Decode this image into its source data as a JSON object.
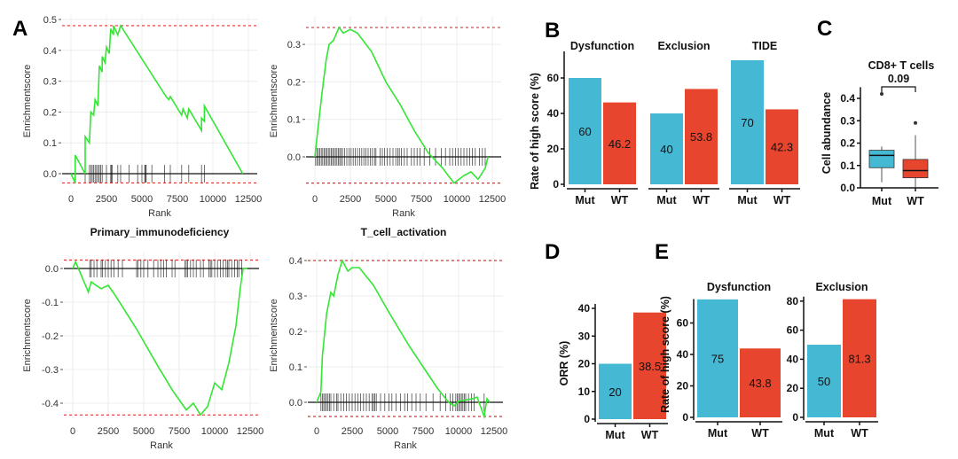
{
  "panel_letters": [
    "A",
    "B",
    "C",
    "D",
    "E"
  ],
  "colors": {
    "mut": "#45b8d4",
    "wt": "#e8452f",
    "curve": "#33e633",
    "ref": "#e03030",
    "hit": "#222222"
  },
  "chart_data": [
    {
      "type": "line",
      "panel": "A",
      "title": "Primary_immunodeficiency",
      "xlabel": "Rank",
      "ylabel": "Enrichmentscore",
      "xticks": [
        "0",
        "2500",
        "5000",
        "7500",
        "10000",
        "12500"
      ],
      "yticks": [
        "0.0",
        "0.1",
        "0.2",
        "0.3",
        "0.4",
        "0.5"
      ],
      "xlim": [
        0,
        12500
      ],
      "ylim": [
        -0.03,
        0.5
      ],
      "ref_lines": [
        0.48,
        -0.03
      ],
      "points": [
        [
          0,
          0
        ],
        [
          300,
          -0.03
        ],
        [
          300,
          0.06
        ],
        [
          1000,
          0
        ],
        [
          1000,
          0.12
        ],
        [
          1300,
          0.1
        ],
        [
          1400,
          0.2
        ],
        [
          1600,
          0.19
        ],
        [
          1700,
          0.24
        ],
        [
          1900,
          0.22
        ],
        [
          2000,
          0.35
        ],
        [
          2200,
          0.33
        ],
        [
          2200,
          0.38
        ],
        [
          2400,
          0.36
        ],
        [
          2500,
          0.41
        ],
        [
          2700,
          0.39
        ],
        [
          2800,
          0.47
        ],
        [
          3000,
          0.45
        ],
        [
          3000,
          0.48
        ],
        [
          3300,
          0.45
        ],
        [
          3500,
          0.48
        ],
        [
          6700,
          0.25
        ],
        [
          6900,
          0.24
        ],
        [
          7000,
          0.25
        ],
        [
          7800,
          0.19
        ],
        [
          7900,
          0.21
        ],
        [
          8200,
          0.18
        ],
        [
          8300,
          0.21
        ],
        [
          9200,
          0.14
        ],
        [
          9200,
          0.18
        ],
        [
          9400,
          0.17
        ],
        [
          9400,
          0.22
        ],
        [
          12100,
          0
        ]
      ],
      "hits": [
        300,
        1000,
        1300,
        1400,
        1500,
        1600,
        1700,
        1800,
        1900,
        2000,
        2100,
        2200,
        2500,
        2800,
        2850,
        2900,
        3300,
        3500,
        4100,
        4700,
        5000,
        5200,
        5250,
        5300,
        5700,
        6600,
        7000,
        7800,
        8300,
        9200,
        9400
      ]
    },
    {
      "type": "line",
      "panel": "A",
      "title": "T_cell_activation",
      "xlabel": "Rank",
      "ylabel": "Enrichmentscore",
      "xticks": [
        "0",
        "2500",
        "5000",
        "7500",
        "10000",
        "12500"
      ],
      "yticks": [
        "0.0",
        "0.1",
        "0.2",
        "0.3"
      ],
      "xlim": [
        0,
        12500
      ],
      "ylim": [
        -0.07,
        0.345
      ],
      "ref_lines": [
        0.345,
        -0.07
      ],
      "points": [
        [
          0,
          0
        ],
        [
          200,
          0.07
        ],
        [
          500,
          0.17
        ],
        [
          800,
          0.26
        ],
        [
          1000,
          0.3
        ],
        [
          1300,
          0.31
        ],
        [
          1700,
          0.345
        ],
        [
          2000,
          0.33
        ],
        [
          2500,
          0.34
        ],
        [
          3000,
          0.33
        ],
        [
          4000,
          0.28
        ],
        [
          5000,
          0.2
        ],
        [
          6000,
          0.14
        ],
        [
          7000,
          0.07
        ],
        [
          8000,
          0.01
        ],
        [
          9000,
          -0.03
        ],
        [
          9800,
          -0.07
        ],
        [
          10500,
          -0.05
        ],
        [
          11000,
          -0.04
        ],
        [
          11500,
          -0.06
        ],
        [
          12000,
          -0.03
        ],
        [
          12200,
          0
        ]
      ],
      "hits": [
        50,
        150,
        250,
        350,
        450,
        550,
        650,
        750,
        850,
        950,
        1050,
        1150,
        1250,
        1350,
        1450,
        1550,
        1650,
        1750,
        1850,
        1950,
        2100,
        2250,
        2400,
        2550,
        2700,
        2850,
        3000,
        3150,
        3300,
        3450,
        3600,
        3750,
        3900,
        4050,
        4200,
        4300,
        4600,
        4750,
        4900,
        5100,
        5300,
        5500,
        5700,
        5850,
        5950,
        6100,
        6300,
        6500,
        6800,
        7000,
        7200,
        7400,
        7700,
        8100,
        8500,
        8900,
        9200,
        9500,
        9700,
        9900,
        10100,
        10300,
        10500,
        10700,
        10900,
        11100,
        11300,
        11600,
        11800,
        12000
      ]
    },
    {
      "type": "line",
      "panel": "A",
      "title": "",
      "xlabel": "Rank",
      "ylabel": "Enrichmentscore",
      "xticks": [
        "0",
        "2500",
        "5000",
        "7500",
        "10000",
        "12500"
      ],
      "yticks": [
        "-0.4",
        "-0.3",
        "-0.2",
        "-0.1",
        "0.0"
      ],
      "xlim": [
        0,
        12500
      ],
      "ylim": [
        -0.435,
        0.025
      ],
      "ref_lines": [
        0.025,
        -0.435
      ],
      "points": [
        [
          0,
          0
        ],
        [
          200,
          0.02
        ],
        [
          1100,
          -0.07
        ],
        [
          1300,
          -0.04
        ],
        [
          2000,
          -0.06
        ],
        [
          2500,
          -0.05
        ],
        [
          3000,
          -0.08
        ],
        [
          4500,
          -0.18
        ],
        [
          6000,
          -0.29
        ],
        [
          7000,
          -0.36
        ],
        [
          8000,
          -0.42
        ],
        [
          8500,
          -0.4
        ],
        [
          9000,
          -0.435
        ],
        [
          9500,
          -0.41
        ],
        [
          10000,
          -0.34
        ],
        [
          10500,
          -0.36
        ],
        [
          11000,
          -0.28
        ],
        [
          11500,
          -0.17
        ],
        [
          11800,
          -0.06
        ],
        [
          12000,
          0
        ],
        [
          12300,
          0
        ]
      ],
      "hits": [
        1200,
        1300,
        1500,
        1700,
        2000,
        2100,
        2300,
        2500,
        2700,
        2900,
        3200,
        3500,
        4500,
        4600,
        4800,
        5000,
        5300,
        5700,
        6000,
        6200,
        6400,
        6600,
        7000,
        7200,
        7900,
        8000,
        8100,
        8300,
        8500,
        8700,
        9000,
        9200,
        9600,
        9700,
        9800,
        10000,
        10200,
        10400,
        10600,
        10800,
        10900,
        11000,
        11200,
        11400,
        11600,
        11700,
        11900
      ]
    },
    {
      "type": "line",
      "panel": "A",
      "title": "",
      "xlabel": "Rank",
      "ylabel": "Enrichmentscore",
      "xticks": [
        "0",
        "2500",
        "5000",
        "7500",
        "10000",
        "12500"
      ],
      "yticks": [
        "0.0",
        "0.1",
        "0.2",
        "0.3",
        "0.4"
      ],
      "xlim": [
        0,
        12500
      ],
      "ylim": [
        -0.04,
        0.4
      ],
      "ref_lines": [
        0.4,
        -0.04
      ],
      "points": [
        [
          0,
          0
        ],
        [
          300,
          0.03
        ],
        [
          400,
          0.13
        ],
        [
          700,
          0.25
        ],
        [
          1000,
          0.31
        ],
        [
          1200,
          0.3
        ],
        [
          1500,
          0.36
        ],
        [
          1800,
          0.4
        ],
        [
          2200,
          0.37
        ],
        [
          2500,
          0.38
        ],
        [
          3000,
          0.38
        ],
        [
          4000,
          0.33
        ],
        [
          5000,
          0.26
        ],
        [
          6500,
          0.16
        ],
        [
          7500,
          0.1
        ],
        [
          8500,
          0.04
        ],
        [
          9300,
          0
        ],
        [
          9700,
          -0.01
        ],
        [
          10000,
          0.003
        ],
        [
          11000,
          0.01
        ],
        [
          11300,
          0.015
        ],
        [
          11800,
          -0.04
        ],
        [
          12000,
          0.01
        ],
        [
          12200,
          0
        ]
      ],
      "hits": [
        300,
        400,
        500,
        600,
        700,
        800,
        900,
        1000,
        1200,
        1400,
        1500,
        1700,
        1900,
        2100,
        2300,
        2500,
        2700,
        2900,
        3100,
        3300,
        3500,
        3700,
        3900,
        4000,
        4100,
        4200,
        4500,
        4800,
        5100,
        5300,
        5600,
        5900,
        6200,
        6400,
        6700,
        7000,
        7300,
        7700,
        8200,
        8700,
        9100,
        9400,
        9600,
        9800,
        9900,
        10000,
        10100,
        10200,
        10300,
        10400,
        10500,
        10700,
        10900,
        11100,
        11800
      ]
    },
    {
      "type": "bar",
      "panel": "B",
      "ylabel": "Rate of high score (%)",
      "yticks": [
        "0",
        "20",
        "40",
        "60"
      ],
      "ylim": [
        0,
        75
      ],
      "categories": [
        "Mut",
        "WT"
      ],
      "groups": [
        {
          "title": "Dysfunction",
          "values": [
            60,
            46.2
          ],
          "labels": [
            "60",
            "46.2"
          ]
        },
        {
          "title": "Exclusion",
          "values": [
            40,
            53.8
          ],
          "labels": [
            "40",
            "53.8"
          ]
        },
        {
          "title": "TIDE",
          "values": [
            70,
            42.3
          ],
          "labels": [
            "70",
            "42.3"
          ]
        }
      ]
    },
    {
      "type": "box",
      "panel": "C",
      "title": "CD8+ T cells",
      "pvalue": "0.09",
      "ylabel": "Cell abundance",
      "yticks": [
        "0.0",
        "0.1",
        "0.2",
        "0.3",
        "0.4"
      ],
      "ylim": [
        0,
        0.45
      ],
      "categories": [
        "Mut",
        "WT"
      ],
      "boxes": [
        {
          "min": 0.025,
          "q1": 0.09,
          "median": 0.145,
          "q3": 0.168,
          "max": 0.185,
          "outliers": [
            0.42
          ]
        },
        {
          "min": 0.003,
          "q1": 0.045,
          "median": 0.077,
          "q3": 0.127,
          "max": 0.235,
          "outliers": [
            0.29
          ]
        }
      ]
    },
    {
      "type": "bar",
      "panel": "D",
      "ylabel": "ORR (%)",
      "yticks": [
        "0",
        "10",
        "20",
        "30",
        "40"
      ],
      "ylim": [
        0,
        40
      ],
      "categories": [
        "Mut",
        "WT"
      ],
      "groups": [
        {
          "title": "",
          "values": [
            20,
            38.5
          ],
          "labels": [
            "20",
            "38.5"
          ]
        }
      ]
    },
    {
      "type": "bar",
      "panel": "E",
      "ylabel": "Rate of high score (%)",
      "categories": [
        "Mut",
        "WT"
      ],
      "groups": [
        {
          "title": "Dysfunction",
          "values": [
            75,
            43.8
          ],
          "labels": [
            "75",
            "43.8"
          ],
          "yticks": [
            "0",
            "20",
            "40",
            "60"
          ],
          "ylim": [
            0,
            75
          ]
        },
        {
          "title": "Exclusion",
          "values": [
            50,
            81.3
          ],
          "labels": [
            "50",
            "81.3"
          ],
          "yticks": [
            "0",
            "20",
            "40",
            "60",
            "80"
          ],
          "ylim": [
            0,
            81.3
          ]
        }
      ]
    }
  ]
}
